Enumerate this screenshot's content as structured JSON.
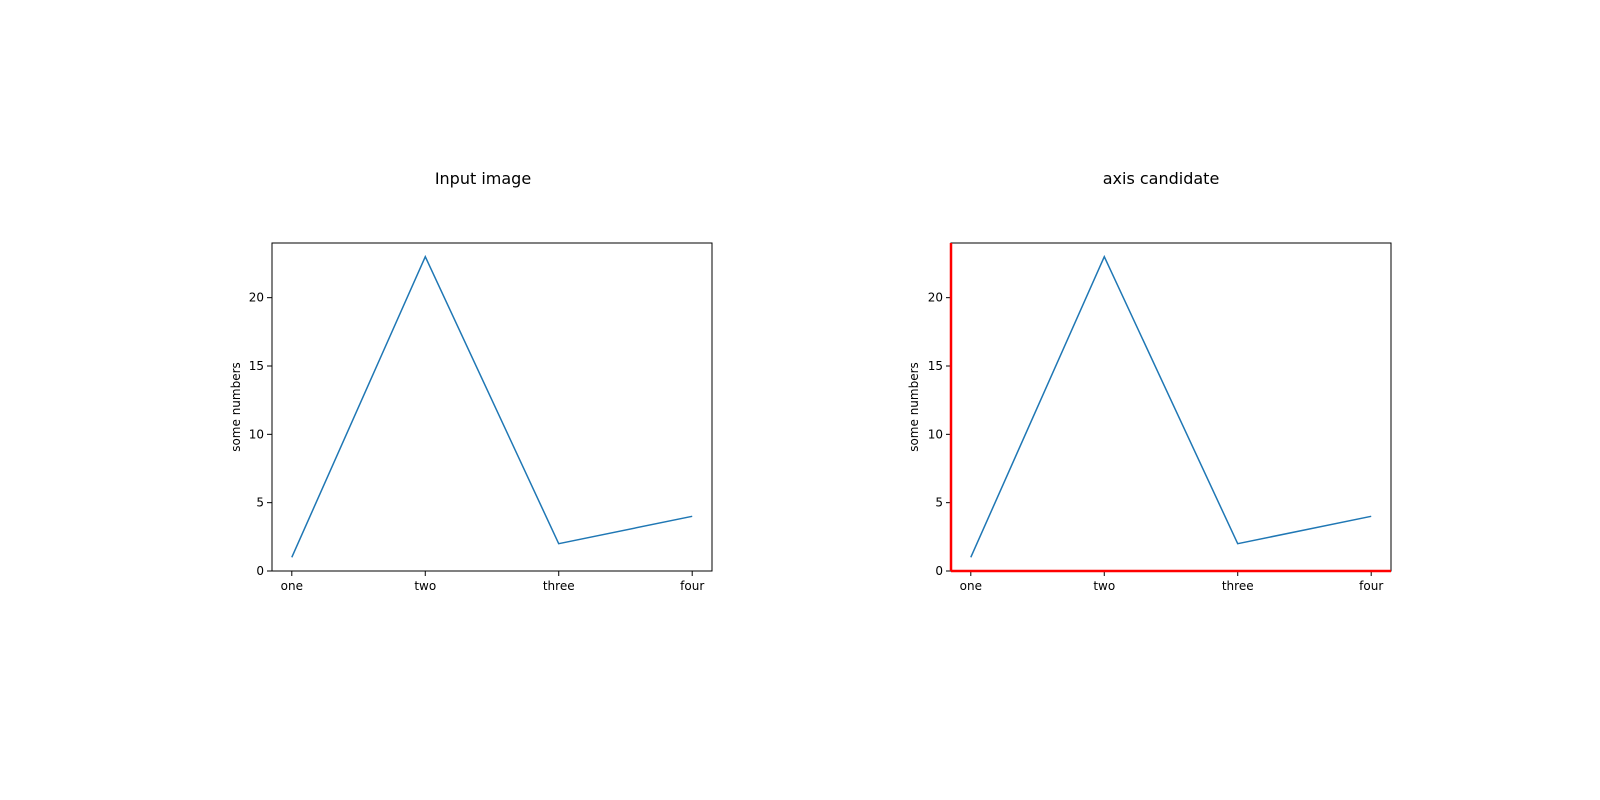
{
  "chart_data": [
    {
      "type": "line",
      "title": "Input image",
      "xlabel": "",
      "ylabel": "some numbers",
      "categories": [
        "one",
        "two",
        "three",
        "four"
      ],
      "series": [
        {
          "values": [
            1,
            23,
            2,
            4
          ]
        }
      ],
      "ylim": [
        0,
        24
      ],
      "yticks": [
        0,
        5,
        10,
        15,
        20
      ],
      "grid": false,
      "line_color": "#1f77b4",
      "frame_color": "#000000",
      "highlight_color": null
    },
    {
      "type": "line",
      "title": "axis candidate",
      "xlabel": "",
      "ylabel": "some numbers",
      "categories": [
        "one",
        "two",
        "three",
        "four"
      ],
      "series": [
        {
          "values": [
            1,
            23,
            2,
            4
          ]
        }
      ],
      "ylim": [
        0,
        24
      ],
      "yticks": [
        0,
        5,
        10,
        15,
        20
      ],
      "grid": false,
      "line_color": "#1f77b4",
      "frame_color": "#000000",
      "highlight_color": "#ff0000"
    }
  ]
}
